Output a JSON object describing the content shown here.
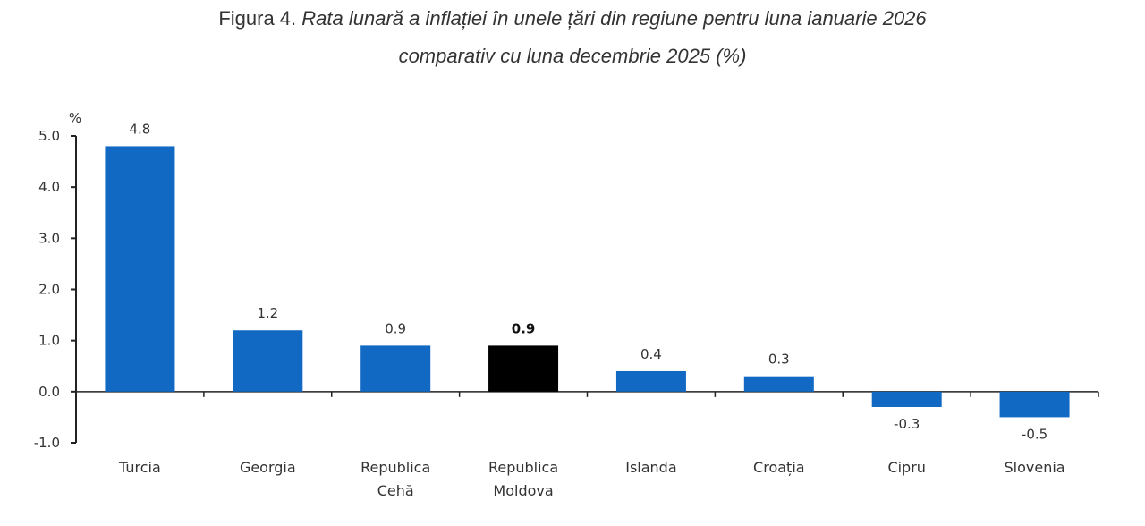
{
  "chart_data": {
    "type": "bar",
    "title_prefix": "Figura 4.",
    "title_line1": "Rata lunară a inflației în unele țări din regiune pentru luna ianuarie 2026",
    "title_line2": "comparativ cu luna decembrie 2025 (%)",
    "ylabel": "%",
    "xlabel": "",
    "ylim": [
      -1.0,
      5.0
    ],
    "yticks": [
      "5.0",
      "4.0",
      "3.0",
      "2.0",
      "1.0",
      "0.0",
      "-1.0"
    ],
    "ytick_values": [
      5,
      4,
      3,
      2,
      1,
      0,
      -1
    ],
    "grid": false,
    "categories": [
      [
        "Turcia"
      ],
      [
        "Georgia"
      ],
      [
        "Republica",
        "Cehă"
      ],
      [
        "Republica",
        "Moldova"
      ],
      [
        "Islanda"
      ],
      [
        "Croația"
      ],
      [
        "Cipru"
      ],
      [
        "Slovenia"
      ]
    ],
    "values": [
      4.8,
      1.2,
      0.9,
      0.9,
      0.4,
      0.3,
      -0.3,
      -0.5
    ],
    "value_labels": [
      "4.8",
      "1.2",
      "0.9",
      "0.9",
      "0.4",
      "0.3",
      "-0.3",
      "-0.5"
    ],
    "highlight_index": 3,
    "colors": {
      "default": "#1169c4",
      "highlight": "#000000",
      "axis": "#222222",
      "text": "#333333"
    }
  }
}
